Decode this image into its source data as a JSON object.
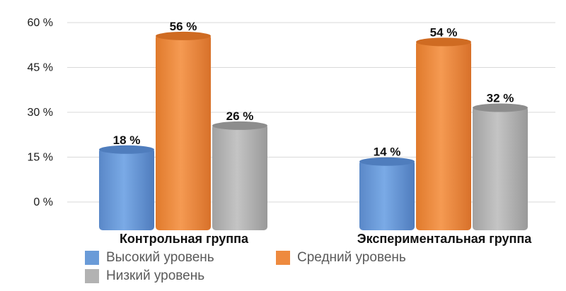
{
  "chart_data": {
    "type": "bar",
    "categories": [
      "Контрольная группа",
      "Экспериментальная группа"
    ],
    "series": [
      {
        "name": "Высокий уровень",
        "values": [
          18,
          14
        ],
        "labels": [
          "18 %",
          "14 %"
        ],
        "color": "#6a9bd8"
      },
      {
        "name": "Средний уровень",
        "values": [
          56,
          54
        ],
        "labels": [
          "56 %",
          "54 %"
        ],
        "color": "#ee8a3f"
      },
      {
        "name": "Низкий уровень",
        "values": [
          26,
          32
        ],
        "labels": [
          "26 %",
          "32 %"
        ],
        "color": "#b2b2b2"
      }
    ],
    "yticks": [
      "0 %",
      "15 %",
      "30 %",
      "45 %",
      "60 %"
    ],
    "ylim": [
      0,
      60
    ],
    "grid": true,
    "legend_position": "bottom"
  }
}
